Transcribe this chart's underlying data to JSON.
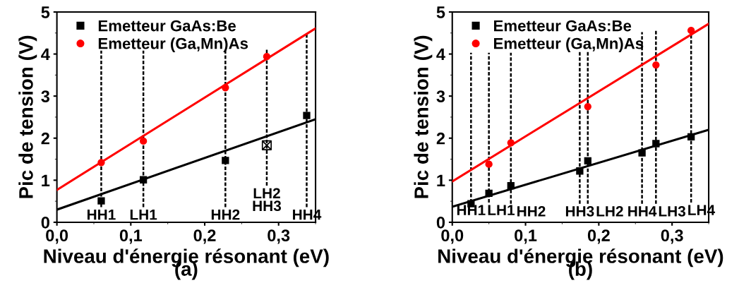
{
  "chart_data": [
    {
      "type": "scatter",
      "xlabel": "Niveau d'énergie résonant (eV)",
      "ylabel": "Pic de tension (V)",
      "annotations": [
        "(a)",
        {
          "text": "HH1",
          "x": 0.06,
          "y": 0.36
        },
        {
          "text": "LH1",
          "x": 0.117,
          "y": 0.36
        },
        {
          "text": "HH2",
          "x": 0.228,
          "y": 0.36
        },
        {
          "text": "LH2\nHH3",
          "x": 0.284,
          "y": 0.87
        },
        {
          "text": "HH4",
          "x": 0.338,
          "y": 0.36
        }
      ],
      "xlim": [
        0,
        0.35
      ],
      "ylim": [
        0,
        5
      ],
      "xticks": [
        {
          "value": 0,
          "label": "0,0"
        },
        {
          "value": 0.1,
          "label": "0,1"
        },
        {
          "value": 0.2,
          "label": "0,2"
        },
        {
          "value": 0.3,
          "label": "0,3"
        }
      ],
      "yticks": [
        0,
        1,
        2,
        3,
        4,
        5
      ],
      "grid": false,
      "legend": "top left",
      "series": [
        {
          "name": "Emetteur GaAs:Be",
          "color": "#000000",
          "marker": "square",
          "x": [
            0.06,
            0.117,
            0.228,
            0.338
          ],
          "values": [
            0.51,
            1.01,
            1.47,
            2.54
          ]
        },
        {
          "name": "Emetteur (Ga,Mn)As",
          "color": "#ff0000",
          "marker": "circle",
          "x": [
            0.06,
            0.117,
            0.228,
            0.284
          ],
          "values": [
            1.42,
            1.93,
            3.2,
            3.94
          ]
        },
        {
          "color": "#000000",
          "marker": "cross",
          "x": [
            0.284
          ],
          "values": [
            1.83
          ]
        },
        {
          "type": "line",
          "color": "#000000",
          "line_style": "solid",
          "x": [
            0,
            0.35
          ],
          "values": [
            0.3,
            2.45
          ]
        },
        {
          "type": "line",
          "color": "#ff0000",
          "line_style": "solid",
          "x": [
            0,
            0.35
          ],
          "values": [
            0.77,
            4.61
          ]
        },
        {
          "type": "line",
          "color": "#000000",
          "line_style": "dotted",
          "x": [
            0.06,
            0.06
          ],
          "values": [
            0.36,
            4.08
          ]
        },
        {
          "type": "line",
          "color": "#000000",
          "line_style": "dotted",
          "x": [
            0.117,
            0.117
          ],
          "values": [
            0.36,
            4.08
          ]
        },
        {
          "type": "line",
          "color": "#000000",
          "line_style": "dotted",
          "x": [
            0.228,
            0.228
          ],
          "values": [
            0.36,
            4.1
          ]
        },
        {
          "type": "line",
          "color": "#000000",
          "line_style": "dotted",
          "x": [
            0.284,
            0.284
          ],
          "values": [
            0.87,
            4.13
          ]
        },
        {
          "type": "line",
          "color": "#000000",
          "line_style": "dotted",
          "x": [
            0.338,
            0.338
          ],
          "values": [
            0.36,
            4.49
          ]
        }
      ]
    },
    {
      "type": "scatter",
      "xlabel": "Niveau d'énergie résonant (eV)",
      "ylabel": "Pic de tension (V)",
      "annotations": [
        "(b)",
        {
          "text": "HH1",
          "x": 0.0256,
          "y": 0.47
        },
        {
          "text": "LH1",
          "x": 0.05,
          "y": 0.47
        },
        {
          "text": "HH2",
          "x": 0.08,
          "y": 0.44
        },
        {
          "text": "HH3",
          "x": 0.174,
          "y": 0.44
        },
        {
          "text": "LH2",
          "x": 0.185,
          "y": 0.44
        },
        {
          "text": "HH4",
          "x": 0.259,
          "y": 0.44
        },
        {
          "text": "LH3",
          "x": 0.278,
          "y": 0.44
        },
        {
          "text": "LH4",
          "x": 0.326,
          "y": 0.47
        }
      ],
      "xlim": [
        0,
        0.35
      ],
      "ylim": [
        0,
        5
      ],
      "xticks": [
        {
          "value": 0,
          "label": "0,0"
        },
        {
          "value": 0.1,
          "label": "0,1"
        },
        {
          "value": 0.2,
          "label": "0,2"
        },
        {
          "value": 0.3,
          "label": "0,3"
        }
      ],
      "yticks": [
        0,
        1,
        2,
        3,
        4,
        5
      ],
      "grid": false,
      "legend": "top left",
      "series": [
        {
          "name": "Emetteur GaAs:Be",
          "color": "#000000",
          "marker": "square",
          "x": [
            0.0256,
            0.05,
            0.08,
            0.174,
            0.185,
            0.259,
            0.278,
            0.326
          ],
          "values": [
            0.44,
            0.69,
            0.87,
            1.22,
            1.46,
            1.65,
            1.87,
            2.03
          ]
        },
        {
          "name": "Emetteur (Ga,Mn)As",
          "color": "#ff0000",
          "marker": "circle",
          "x": [
            0.05,
            0.08,
            0.185,
            0.278,
            0.326
          ],
          "values": [
            1.38,
            1.89,
            2.75,
            3.74,
            4.56
          ]
        },
        {
          "type": "line",
          "color": "#000000",
          "line_style": "solid",
          "x": [
            0,
            0.35
          ],
          "values": [
            0.37,
            2.2
          ]
        },
        {
          "type": "line",
          "color": "#ff0000",
          "line_style": "solid",
          "x": [
            0,
            0.35
          ],
          "values": [
            0.97,
            4.72
          ]
        },
        {
          "type": "line",
          "color": "#000000",
          "line_style": "dotted",
          "x": [
            0.0256,
            0.0256
          ],
          "values": [
            0.47,
            4.03
          ]
        },
        {
          "type": "line",
          "color": "#000000",
          "line_style": "dotted",
          "x": [
            0.05,
            0.05
          ],
          "values": [
            0.47,
            4.03
          ]
        },
        {
          "type": "line",
          "color": "#000000",
          "line_style": "dotted",
          "x": [
            0.08,
            0.08
          ],
          "values": [
            0.44,
            4.03
          ]
        },
        {
          "type": "line",
          "color": "#000000",
          "line_style": "dotted",
          "x": [
            0.174,
            0.174
          ],
          "values": [
            0.44,
            4.05
          ]
        },
        {
          "type": "line",
          "color": "#000000",
          "line_style": "dotted",
          "x": [
            0.185,
            0.185
          ],
          "values": [
            0.44,
            4.05
          ]
        },
        {
          "type": "line",
          "color": "#000000",
          "line_style": "dotted",
          "x": [
            0.259,
            0.259
          ],
          "values": [
            0.44,
            4.52
          ]
        },
        {
          "type": "line",
          "color": "#000000",
          "line_style": "dotted",
          "x": [
            0.278,
            0.278
          ],
          "values": [
            0.44,
            4.55
          ]
        },
        {
          "type": "line",
          "color": "#000000",
          "line_style": "dotted",
          "x": [
            0.326,
            0.326
          ],
          "values": [
            0.47,
            4.58
          ]
        }
      ]
    }
  ]
}
